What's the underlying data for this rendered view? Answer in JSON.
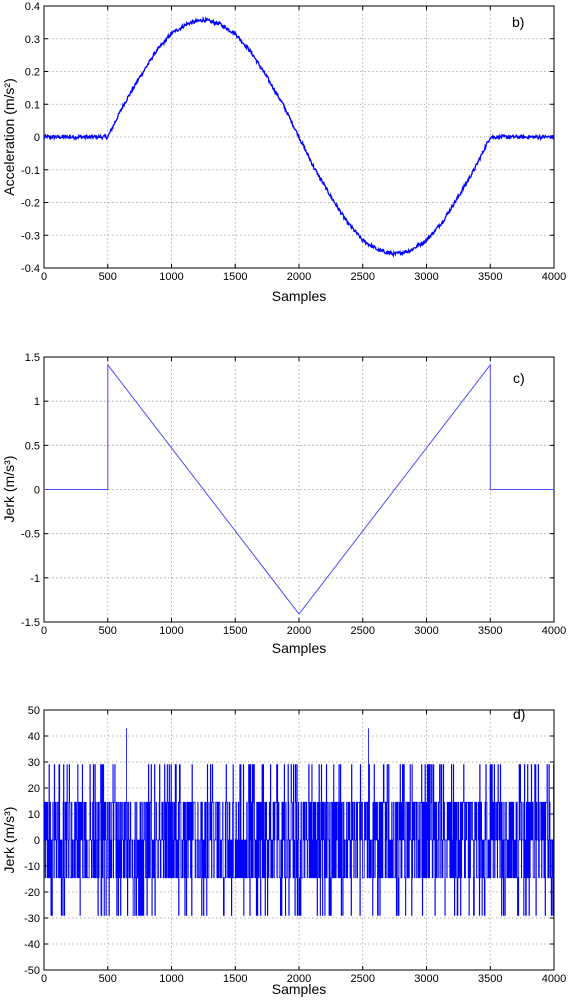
{
  "chart_data": [
    {
      "type": "line",
      "panel_tag": "b)",
      "xlabel": "Samples",
      "ylabel": "Acceleration (m/s²)",
      "xlim": [
        0,
        4000
      ],
      "ylim": [
        -0.4,
        0.4
      ],
      "xticks": [
        0,
        500,
        1000,
        1500,
        2000,
        2500,
        3000,
        3500,
        4000
      ],
      "yticks": [
        0.4,
        0.3,
        0.2,
        0.1,
        0,
        -0.1,
        -0.2,
        -0.3,
        -0.4
      ],
      "grid": true,
      "line_color": "#0000ff",
      "series": [
        {
          "x": [
            0,
            500,
            625,
            750,
            875,
            1000,
            1125,
            1250,
            1375,
            1500,
            1625,
            1750,
            1875,
            2000,
            2125,
            2250,
            2375,
            2500,
            2625,
            2750,
            2875,
            3000,
            3125,
            3250,
            3375,
            3500,
            4000
          ],
          "values": [
            0,
            0,
            0.099,
            0.182,
            0.259,
            0.316,
            0.346,
            0.358,
            0.346,
            0.316,
            0.259,
            0.182,
            0.099,
            0,
            -0.099,
            -0.182,
            -0.259,
            -0.316,
            -0.346,
            -0.358,
            -0.346,
            -0.316,
            -0.259,
            -0.182,
            -0.099,
            0,
            0
          ]
        }
      ]
    },
    {
      "type": "line",
      "panel_tag": "c)",
      "xlabel": "Samples",
      "ylabel": "Jerk (m/s³)",
      "xlim": [
        0,
        4000
      ],
      "ylim": [
        -1.5,
        1.5
      ],
      "xticks": [
        0,
        500,
        1000,
        1500,
        2000,
        2500,
        3000,
        3500,
        4000
      ],
      "yticks": [
        1.5,
        1,
        0.5,
        0,
        -0.5,
        -1,
        -1.5
      ],
      "grid": true,
      "line_color": "#4d4dff",
      "series": [
        {
          "x": [
            0,
            500,
            500,
            2000,
            3500,
            3500,
            3500,
            3500,
            4000
          ],
          "values": [
            0,
            0,
            1.41,
            -1.41,
            1.41,
            0.72,
            1.0,
            0,
            0
          ]
        }
      ]
    },
    {
      "type": "line",
      "panel_tag": "d)",
      "xlabel": "Samples",
      "ylabel": "Jerk (m/s³)",
      "xlim": [
        0,
        4000
      ],
      "ylim": [
        -50,
        50
      ],
      "xticks": [
        0,
        500,
        1000,
        1500,
        2000,
        2500,
        3000,
        3500,
        4000
      ],
      "yticks": [
        50,
        40,
        30,
        20,
        10,
        0,
        -10,
        -20,
        -30,
        -40,
        -50
      ],
      "grid": true,
      "line_color": "#0000ff",
      "series": [
        {
          "description_levels": [
            -29,
            -14.5,
            0,
            14.5,
            29
          ],
          "spikes": [
            {
              "x": 648,
              "value": 43
            },
            {
              "x": 2545,
              "value": 43
            }
          ]
        }
      ]
    }
  ]
}
